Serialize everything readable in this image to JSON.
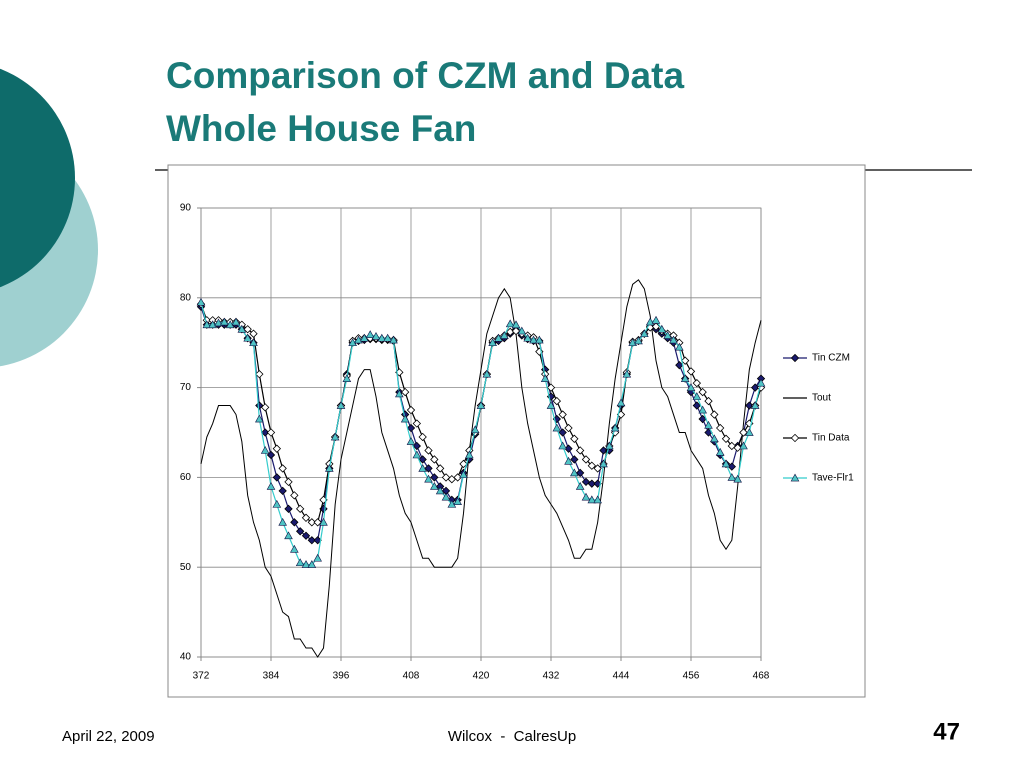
{
  "slide": {
    "title": [
      "Comparison of CZM and Data",
      "Whole House Fan"
    ],
    "footer": {
      "date": "April 22, 2009",
      "center": "Wilcox  -  CalresUp",
      "page": "47"
    }
  },
  "chart_data": {
    "type": "line",
    "x": [
      372,
      373,
      374,
      375,
      376,
      377,
      378,
      379,
      380,
      381,
      382,
      383,
      384,
      385,
      386,
      387,
      388,
      389,
      390,
      391,
      392,
      393,
      394,
      395,
      396,
      397,
      398,
      399,
      400,
      401,
      402,
      403,
      404,
      405,
      406,
      407,
      408,
      409,
      410,
      411,
      412,
      413,
      414,
      415,
      416,
      417,
      418,
      419,
      420,
      421,
      422,
      423,
      424,
      425,
      426,
      427,
      428,
      429,
      430,
      431,
      432,
      433,
      434,
      435,
      436,
      437,
      438,
      439,
      440,
      441,
      442,
      443,
      444,
      445,
      446,
      447,
      448,
      449,
      450,
      451,
      452,
      453,
      454,
      455,
      456,
      457,
      458,
      459,
      460,
      461,
      462,
      463,
      464,
      465,
      466,
      467,
      468
    ],
    "xlim": [
      372,
      468
    ],
    "xticks": [
      372,
      384,
      396,
      408,
      420,
      432,
      444,
      456,
      468
    ],
    "ylim": [
      40,
      90
    ],
    "yticks": [
      40,
      50,
      60,
      70,
      80,
      90
    ],
    "grid": true,
    "legend": "right",
    "series": [
      {
        "name": "Tin CZM",
        "color": "#1a1a6e",
        "marker": "diamond",
        "values": [
          79,
          77,
          77,
          77,
          77,
          77,
          77,
          76.5,
          75.5,
          75,
          68,
          65,
          62.5,
          60,
          58.5,
          56.5,
          55,
          54,
          53.5,
          53,
          53,
          56.5,
          61,
          64.5,
          68,
          71.5,
          75,
          75.2,
          75.3,
          75.4,
          75.4,
          75.3,
          75.3,
          75.2,
          69.5,
          67,
          65.5,
          63.5,
          62,
          61,
          60,
          59,
          58.5,
          57.5,
          57.5,
          60.5,
          62,
          64.8,
          68,
          71.5,
          75,
          75.2,
          75.5,
          76,
          76.5,
          75.8,
          75.4,
          75.2,
          75.2,
          72,
          69,
          66.5,
          65,
          63.2,
          62,
          60.5,
          59.5,
          59.3,
          59.3,
          63,
          63,
          65.5,
          68,
          71.5,
          75,
          75.2,
          76,
          76.8,
          76.5,
          76,
          75.5,
          75,
          72.5,
          71,
          69.5,
          68,
          66.5,
          65,
          64,
          62.5,
          61.5,
          61.2,
          63.5,
          65,
          68,
          70,
          71
        ]
      },
      {
        "name": "Tout",
        "color": "#000000",
        "marker": "none",
        "values": [
          61.5,
          64.5,
          66,
          68,
          68,
          68,
          67,
          64,
          58,
          55,
          53,
          50,
          49,
          47,
          45,
          44.5,
          42,
          42,
          41,
          41,
          40,
          41,
          48,
          57,
          62,
          65,
          68,
          71,
          72,
          72,
          69,
          65,
          63,
          61,
          58,
          56,
          55,
          53,
          51,
          51,
          50,
          50,
          50,
          50,
          51,
          56,
          63,
          68,
          72,
          76,
          78,
          80,
          81,
          80,
          76,
          70,
          66,
          63,
          60,
          58,
          57,
          56,
          54.5,
          53,
          51,
          51,
          52,
          52,
          55,
          60,
          66,
          71,
          75,
          79,
          81.5,
          82,
          81,
          78,
          73,
          70,
          69,
          67,
          65,
          65,
          63,
          62,
          61,
          58,
          56,
          53,
          52,
          53,
          59,
          66,
          72,
          75,
          77.5
        ]
      },
      {
        "name": "Tin Data",
        "color": "#000000",
        "marker": "open-diamond",
        "values": [
          79.3,
          77.5,
          77.5,
          77.5,
          77.3,
          77.3,
          77.3,
          77,
          76.5,
          76,
          71.5,
          67.8,
          65,
          63.2,
          61,
          59.5,
          58,
          56.5,
          55.5,
          55,
          55,
          57.5,
          61.5,
          64.5,
          68,
          71.3,
          75.2,
          75.5,
          75.5,
          75.5,
          75.5,
          75.4,
          75.4,
          75.3,
          71.7,
          69.5,
          67.5,
          66,
          64.5,
          63,
          62,
          61,
          60,
          59.8,
          60,
          61.5,
          63,
          65,
          68,
          71.5,
          75.2,
          75.5,
          75.8,
          76.2,
          76.3,
          76,
          75.8,
          75.6,
          74,
          71.5,
          70,
          68.5,
          67,
          65.5,
          64.3,
          63,
          62,
          61.3,
          61,
          61.5,
          63.5,
          65,
          67,
          71.7,
          75.1,
          75.3,
          76,
          76.7,
          76.8,
          76.3,
          76,
          75.8,
          75,
          73,
          71.8,
          70.5,
          69.5,
          68.5,
          67,
          65.5,
          64.3,
          63.5,
          63.3,
          65,
          66,
          68,
          70
        ]
      },
      {
        "name": "Tave-Flr1",
        "color": "#33cccc",
        "marker": "triangle",
        "values": [
          79.5,
          77,
          77,
          77.2,
          77.3,
          77,
          77.3,
          76.5,
          75.5,
          75,
          66.5,
          63,
          59,
          57,
          55,
          53.5,
          52,
          50.5,
          50.3,
          50.3,
          51,
          55,
          61,
          64.5,
          68,
          71,
          75,
          75.3,
          75.5,
          75.9,
          75.7,
          75.5,
          75.5,
          75.3,
          69.3,
          66.5,
          64,
          62.5,
          61,
          59.8,
          59,
          58.5,
          57.8,
          57,
          57.3,
          60.3,
          62.5,
          65.3,
          68,
          71.5,
          75,
          75.5,
          75.8,
          77.1,
          77,
          76.3,
          75.5,
          75.3,
          75.3,
          71,
          68,
          65.5,
          63.5,
          61.8,
          60.5,
          59,
          57.8,
          57.5,
          57.5,
          61.5,
          63.5,
          65.5,
          68.3,
          71.5,
          75,
          75.2,
          76,
          77.3,
          77.5,
          76.5,
          75.8,
          75.3,
          74.5,
          71,
          70,
          69,
          67.5,
          65.8,
          64.3,
          62.8,
          61.5,
          60,
          59.8,
          63.5,
          65,
          68,
          70.5
        ]
      }
    ]
  }
}
